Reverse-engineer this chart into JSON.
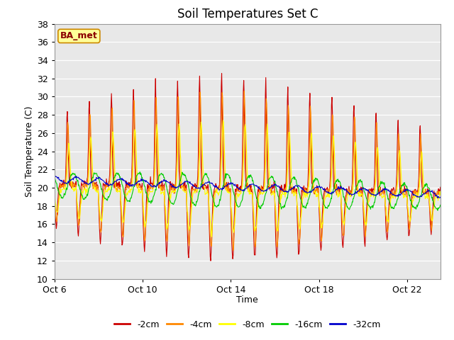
{
  "title": "Soil Temperatures Set C",
  "xlabel": "Time",
  "ylabel": "Soil Temperature (C)",
  "ylim": [
    10,
    38
  ],
  "yticks": [
    10,
    12,
    14,
    16,
    18,
    20,
    22,
    24,
    26,
    28,
    30,
    32,
    34,
    36,
    38
  ],
  "xlim_days": [
    0,
    17.5
  ],
  "xtick_labels": [
    "Oct 6",
    "Oct 10",
    "Oct 14",
    "Oct 18",
    "Oct 22"
  ],
  "xtick_positions": [
    0,
    4,
    8,
    12,
    16
  ],
  "colors": {
    "-2cm": "#cc0000",
    "-4cm": "#ff8800",
    "-8cm": "#ffff00",
    "-16cm": "#00cc00",
    "-32cm": "#0000cc"
  },
  "legend_label": "BA_met",
  "legend_bg": "#ffff99",
  "legend_border": "#cc8800"
}
